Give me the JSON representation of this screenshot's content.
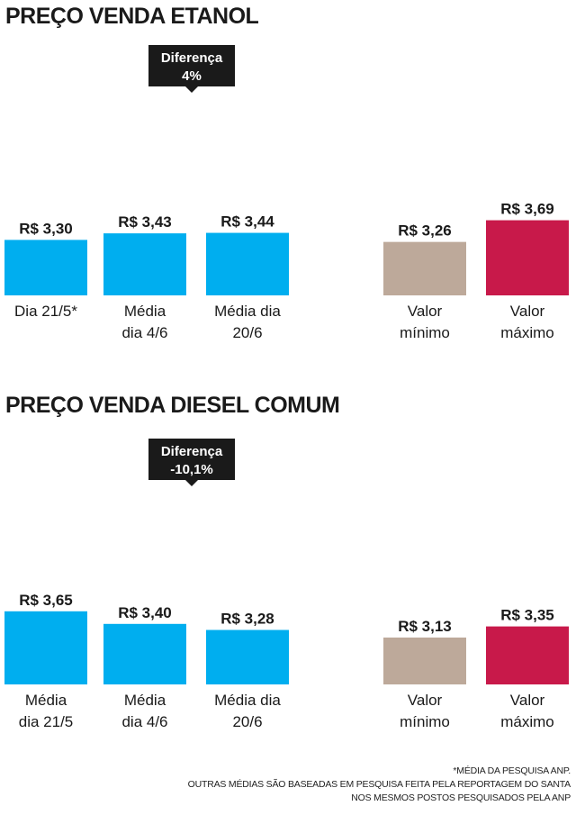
{
  "chart_data": [
    {
      "type": "bar",
      "title": "PREÇO VENDA ETANOL",
      "categories": [
        "Dia 21/5*",
        "Média dia 4/6",
        "Média dia 20/6",
        "Valor mínimo",
        "Valor máximo"
      ],
      "category_lines": [
        [
          "Dia 21/5*"
        ],
        [
          "Média",
          "dia 4/6"
        ],
        [
          "Média dia",
          "20/6"
        ],
        [
          "Valor",
          "mínimo"
        ],
        [
          "Valor",
          "máximo"
        ]
      ],
      "values": [
        3.3,
        3.43,
        3.44,
        3.26,
        3.69
      ],
      "value_labels": [
        "R$ 3,30",
        "R$ 3,43",
        "R$ 3,44",
        "R$ 3,26",
        "R$ 3,69"
      ],
      "annotation": {
        "title": "Diferença",
        "value": "4%"
      },
      "ylim": [
        0,
        3.69
      ],
      "xlabel": "",
      "ylabel": "",
      "grid": false
    },
    {
      "type": "bar",
      "title": "PREÇO VENDA DIESEL COMUM",
      "categories": [
        "Média dia 21/5",
        "Média dia 4/6",
        "Média dia 20/6",
        "Valor mínimo",
        "Valor máximo"
      ],
      "category_lines": [
        [
          "Média",
          "dia 21/5"
        ],
        [
          "Média",
          "dia 4/6"
        ],
        [
          "Média dia",
          "20/6"
        ],
        [
          "Valor",
          "mínimo"
        ],
        [
          "Valor",
          "máximo"
        ]
      ],
      "values": [
        3.65,
        3.4,
        3.28,
        3.13,
        3.35
      ],
      "value_labels": [
        "R$ 3,65",
        "R$ 3,40",
        "R$ 3,28",
        "R$ 3,13",
        "R$ 3,35"
      ],
      "annotation": {
        "title": "Diferença",
        "value": "-10,1%"
      },
      "ylim": [
        0,
        3.65
      ],
      "xlabel": "",
      "ylabel": "",
      "grid": false
    }
  ],
  "colors": {
    "average": "#00aeef",
    "minimum": "#bda99a",
    "maximum": "#c8194a",
    "annotation_box": "#1a1a1a"
  },
  "footnote": {
    "line1": "*Média da pesquisa ANP.",
    "line2": "Outras médias são baseadas em pesquisa feita pela reportagem do Santa",
    "line3": "nos mesmos postos pesquisados pela ANP"
  }
}
